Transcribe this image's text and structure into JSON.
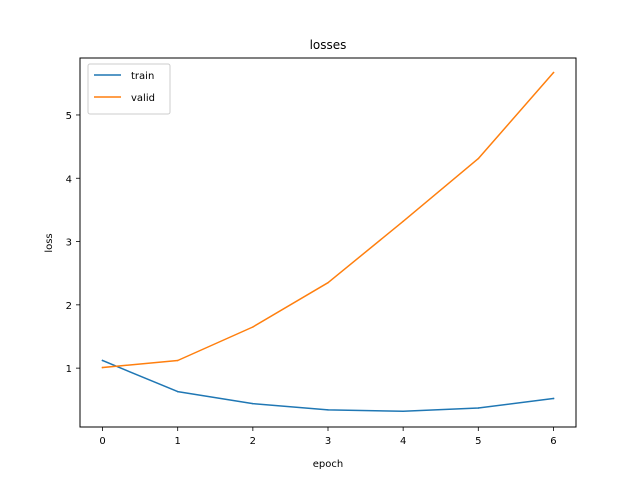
{
  "chart_data": {
    "type": "line",
    "title": "losses",
    "xlabel": "epoch",
    "ylabel": "loss",
    "x": [
      0,
      1,
      2,
      3,
      4,
      5,
      6
    ],
    "xlim": [
      -0.3,
      6.3
    ],
    "ylim": [
      0.07,
      5.9
    ],
    "xticks": [
      "0",
      "1",
      "2",
      "3",
      "4",
      "5",
      "6"
    ],
    "yticks": [
      "1",
      "2",
      "3",
      "4",
      "5"
    ],
    "grid": false,
    "legend_position": "upper-left",
    "series": [
      {
        "name": "train",
        "color": "#1f77b4",
        "values": [
          1.12,
          0.63,
          0.44,
          0.34,
          0.32,
          0.37,
          0.52
        ]
      },
      {
        "name": "valid",
        "color": "#ff7f0e",
        "values": [
          1.01,
          1.12,
          1.65,
          2.35,
          3.32,
          4.31,
          5.67
        ]
      }
    ]
  }
}
